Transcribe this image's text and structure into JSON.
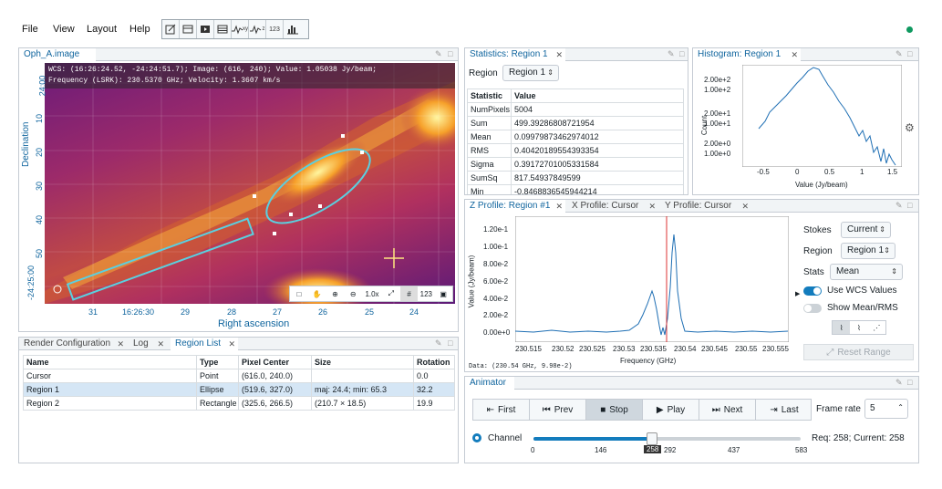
{
  "menu": {
    "file": "File",
    "view": "View",
    "layout": "Layout",
    "help": "Help",
    "toolbar_icons": [
      "new-image-icon",
      "layers-icon",
      "video-icon",
      "table-icon",
      "xy-profile-icon",
      "z-profile-icon",
      "123-icon",
      "histogram-icon"
    ],
    "toolbar_123": "123",
    "toolbar_xy": "xy",
    "toolbar_z": "z"
  },
  "image_panel": {
    "tab": "Oph_A.image",
    "cursor_line1": "WCS: (16:26:24.52, -24:24:51.7); Image: (616, 240); Value:  1.05038 Jy/beam;",
    "cursor_line2": "Frequency (LSRK): 230.5370 GHz; Velocity: 1.3607 km/s",
    "dec_label": "Declination",
    "ra_label": "Right ascension",
    "dec_ticks": [
      "24:00",
      "10",
      "20",
      "30",
      "40",
      "50",
      "-24:25:00"
    ],
    "ra_ticks": [
      "31",
      "16:26:30",
      "29",
      "28",
      "27",
      "26",
      "25",
      "24"
    ],
    "zoom_text": "1.0x",
    "tool_123": "123"
  },
  "stats_panel": {
    "tab": "Statistics: Region 1",
    "region_label": "Region",
    "region_value": "Region 1",
    "header": [
      "Statistic",
      "Value"
    ],
    "rows": [
      [
        "NumPixels",
        "5004"
      ],
      [
        "Sum",
        "499.39286808721954"
      ],
      [
        "Mean",
        "0.09979873462974012"
      ],
      [
        "RMS",
        "0.40420189554393354"
      ],
      [
        "Sigma",
        "0.39172701005331584"
      ],
      [
        "SumSq",
        "817.54937849599"
      ],
      [
        "Min",
        "-0.8468836545944214"
      ]
    ]
  },
  "hist_panel": {
    "tab": "Histogram: Region 1",
    "ylabel": "Count",
    "xlabel": "Value (Jy/beam)",
    "yticks": [
      "2.00e+2",
      "1.00e+2",
      "2.00e+1",
      "1.00e+1",
      "2.00e+0",
      "1.00e+0"
    ],
    "xticks": [
      "-0.5",
      "0",
      "0.5",
      "1",
      "1.5"
    ]
  },
  "zprofile_panel": {
    "tabs": [
      "Z Profile: Region #1",
      "X Profile: Cursor",
      "Y Profile: Cursor"
    ],
    "ylabel": "Value (Jy/beam)",
    "xlabel": "Frequency (GHz)",
    "yticks": [
      "1.20e-1",
      "1.00e-1",
      "8.00e-2",
      "6.00e-2",
      "4.00e-2",
      "2.00e-2",
      "0.00e+0"
    ],
    "xticks": [
      "230.515",
      "230.52",
      "230.525",
      "230.53",
      "230.535",
      "230.54",
      "230.545",
      "230.55",
      "230.555"
    ],
    "data_readout": "Data:       (230.54 GHz, 9.98e-2)",
    "stokes_label": "Stokes",
    "stokes_value": "Current",
    "region_label": "Region",
    "region_value": "Region 1",
    "stats_label": "Stats",
    "stats_value": "Mean",
    "use_wcs": "Use WCS Values",
    "show_mean": "Show Mean/RMS",
    "reset_range": "Reset Range"
  },
  "bottom_left": {
    "tabs": [
      "Render Configuration",
      "Log",
      "Region List"
    ],
    "header": [
      "Name",
      "Type",
      "Pixel Center",
      "Size",
      "Rotation"
    ],
    "rows": [
      [
        "Cursor",
        "Point",
        "(616.0, 240.0)",
        "",
        "0.0"
      ],
      [
        "Region 1",
        "Ellipse",
        "(519.6, 327.0)",
        "maj: 24.4; min: 65.3",
        "32.2"
      ],
      [
        "Region 2",
        "Rectangle",
        "(325.6, 266.5)",
        "(210.7 × 18.5)",
        "19.9"
      ]
    ]
  },
  "animator": {
    "tab": "Animator",
    "first": "First",
    "prev": "Prev",
    "stop": "Stop",
    "play": "Play",
    "next": "Next",
    "last": "Last",
    "frame_rate_label": "Frame rate",
    "frame_rate_value": "5",
    "channel_label": "Channel",
    "channel_fraction": 0.443,
    "ticks": [
      "0",
      "146",
      "258",
      "292",
      "437",
      "583"
    ],
    "status": "Req: 258; Current: 258"
  },
  "colors": {
    "accent": "#137cbd",
    "tab_text": "#10659e",
    "cyan_region": "#5ad0e0",
    "spectrum": "#1f6fb4",
    "marker_red": "#d33"
  }
}
